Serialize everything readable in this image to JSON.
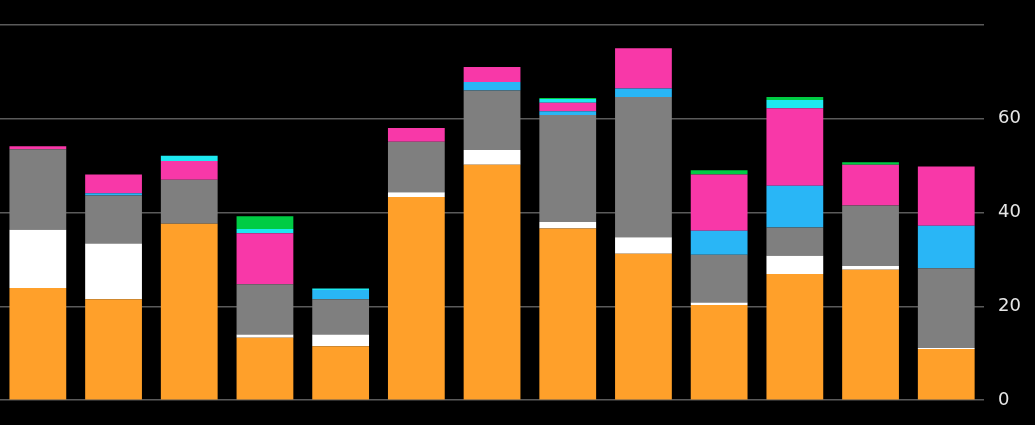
{
  "chart_data": {
    "type": "bar",
    "stacked": true,
    "categories": [
      null,
      null,
      null,
      null,
      null,
      null,
      null,
      null,
      null,
      null,
      null,
      null,
      null
    ],
    "series": [
      {
        "color": "#ffa02a",
        "values": [
          23.9,
          21.5,
          37.6,
          13.3,
          11.5,
          43.3,
          50.2,
          36.6,
          31.2,
          20.3,
          26.9,
          27.8,
          10.9
        ]
      },
      {
        "color": "#ffffff",
        "values": [
          12.4,
          11.9,
          0,
          0.7,
          2.5,
          1.0,
          3.1,
          1.4,
          3.5,
          0.5,
          3.9,
          0.8,
          0.2
        ]
      },
      {
        "color": "#7f7f7f",
        "values": [
          17.2,
          10.2,
          9.4,
          10.7,
          7.5,
          10.8,
          12.7,
          22.8,
          29.9,
          10.2,
          6.0,
          12.9,
          17.0
        ]
      },
      {
        "color": "#29b6f6",
        "values": [
          0,
          0.5,
          0,
          0,
          2.0,
          0,
          1.8,
          0.8,
          1.8,
          5.1,
          8.9,
          0,
          9.1
        ]
      },
      {
        "color": "#f838a8",
        "values": [
          0.6,
          4.0,
          4.0,
          10.9,
          0,
          2.9,
          3.2,
          1.8,
          8.6,
          12.0,
          16.5,
          8.7,
          12.6
        ]
      },
      {
        "color": "#1de9f0",
        "values": [
          0,
          0,
          1.1,
          0.9,
          0.3,
          0,
          0,
          0.8,
          0,
          0,
          1.8,
          0,
          0
        ]
      },
      {
        "color": "#00cc44",
        "values": [
          0,
          0,
          0,
          2.7,
          0,
          0,
          0,
          0.2,
          0,
          0.9,
          0.6,
          0.5,
          0
        ]
      }
    ],
    "ylim": [
      0,
      80
    ],
    "yticks": [
      0,
      20,
      40,
      60,
      {
        "value": 80,
        "label": null
      }
    ],
    "grid": "y",
    "tick_labels": "y"
  }
}
